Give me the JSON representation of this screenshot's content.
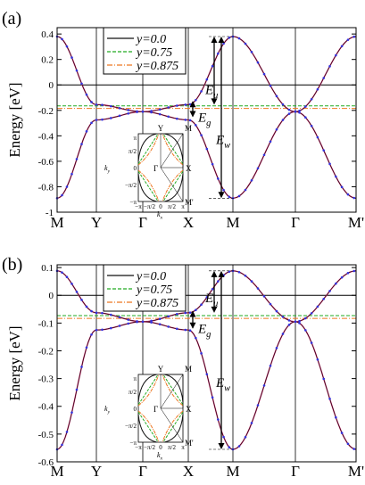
{
  "colors": {
    "y0": "#111111",
    "y075": "#22aa22",
    "y0875": "#ee7722",
    "marker": "#3333dd",
    "pink": "#cc2266",
    "frame": "#000000"
  },
  "chart_data": [
    {
      "panel_label": "(a)",
      "type": "line",
      "ylabel": "Energy [eV]",
      "ylim": [
        -1.0,
        0.45
      ],
      "yticks": [
        "0.4",
        "0.2",
        "0",
        "-0.2",
        "-0.4",
        "-0.6",
        "-0.8",
        "-1"
      ],
      "ytick_values": [
        0.4,
        0.2,
        0,
        -0.2,
        -0.4,
        -0.6,
        -0.8,
        -1.0
      ],
      "kpoints": [
        "M",
        "Y",
        "Γ",
        "X",
        "M",
        "Γ",
        "M'"
      ],
      "legend": [
        "y=0.0",
        "y=0.75",
        "y=0.875"
      ],
      "legend_position": "top-left",
      "hlines": [
        {
          "series": "y=0.75",
          "value": -0.165
        },
        {
          "series": "y=0.875",
          "value": -0.185
        }
      ],
      "annotations": {
        "Eu": "E",
        "Eu_sub": "u",
        "Eg": "E",
        "Eg_sub": "g",
        "Ew": "E",
        "Ew_sub": "w"
      },
      "band_params": {
        "top": 0.38,
        "bottom": -0.89,
        "flat_upper": -0.155,
        "flat_lower": -0.275,
        "crossing": -0.21,
        "gap_upper": -0.175,
        "gap_lower": -0.205,
        "Eu_top": 0.38,
        "Eu_bottom": -0.155,
        "Ew_bottom": -0.89
      },
      "inset": {
        "yticks": [
          "π",
          "π/2",
          "0",
          "−π/2",
          "−π"
        ],
        "xticks": [
          "−π",
          "−π/2",
          "0",
          "π/2",
          "π"
        ],
        "xlabel": "k",
        "xlabel_sub": "x",
        "ylabel": "k",
        "ylabel_sub": "y",
        "corner_labels": {
          "Y": "Y",
          "M": "M",
          "X": "X",
          "Mp": "M'",
          "Gamma": "Γ"
        }
      }
    },
    {
      "panel_label": "(b)",
      "type": "line",
      "ylabel": "Energy [eV]",
      "ylim": [
        -0.6,
        0.11
      ],
      "yticks": [
        "0.1",
        "0",
        "-0.1",
        "-0.2",
        "-0.3",
        "-0.4",
        "-0.5",
        "-0.6"
      ],
      "ytick_values": [
        0.1,
        0,
        -0.1,
        -0.2,
        -0.3,
        -0.4,
        -0.5,
        -0.6
      ],
      "kpoints": [
        "M",
        "Y",
        "Γ",
        "X",
        "M",
        "Γ",
        "M'"
      ],
      "legend": [
        "y=0.0",
        "y=0.75",
        "y=0.875"
      ],
      "legend_position": "top-left",
      "hlines": [
        {
          "series": "y=0.75",
          "value": -0.073
        },
        {
          "series": "y=0.875",
          "value": -0.083
        }
      ],
      "annotations": {
        "Eu": "E",
        "Eu_sub": "u",
        "Eg": "E",
        "Eg_sub": "g",
        "Ew": "E",
        "Ew_sub": "w"
      },
      "band_params": {
        "top": 0.088,
        "bottom": -0.555,
        "flat_upper": -0.063,
        "flat_lower": -0.125,
        "crossing": -0.095,
        "gap_upper": -0.078,
        "gap_lower": -0.098,
        "Eu_top": 0.088,
        "Eu_bottom": -0.063,
        "Ew_bottom": -0.555
      },
      "inset": {
        "yticks": [
          "π",
          "π/2",
          "0",
          "−π/2",
          "−π"
        ],
        "xticks": [
          "−π",
          "−π/2",
          "0",
          "π/2",
          "π"
        ],
        "xlabel": "k",
        "xlabel_sub": "x",
        "ylabel": "k",
        "ylabel_sub": "y",
        "corner_labels": {
          "Y": "Y",
          "M": "M",
          "X": "X",
          "Mp": "M'",
          "Gamma": "Γ"
        }
      }
    }
  ]
}
